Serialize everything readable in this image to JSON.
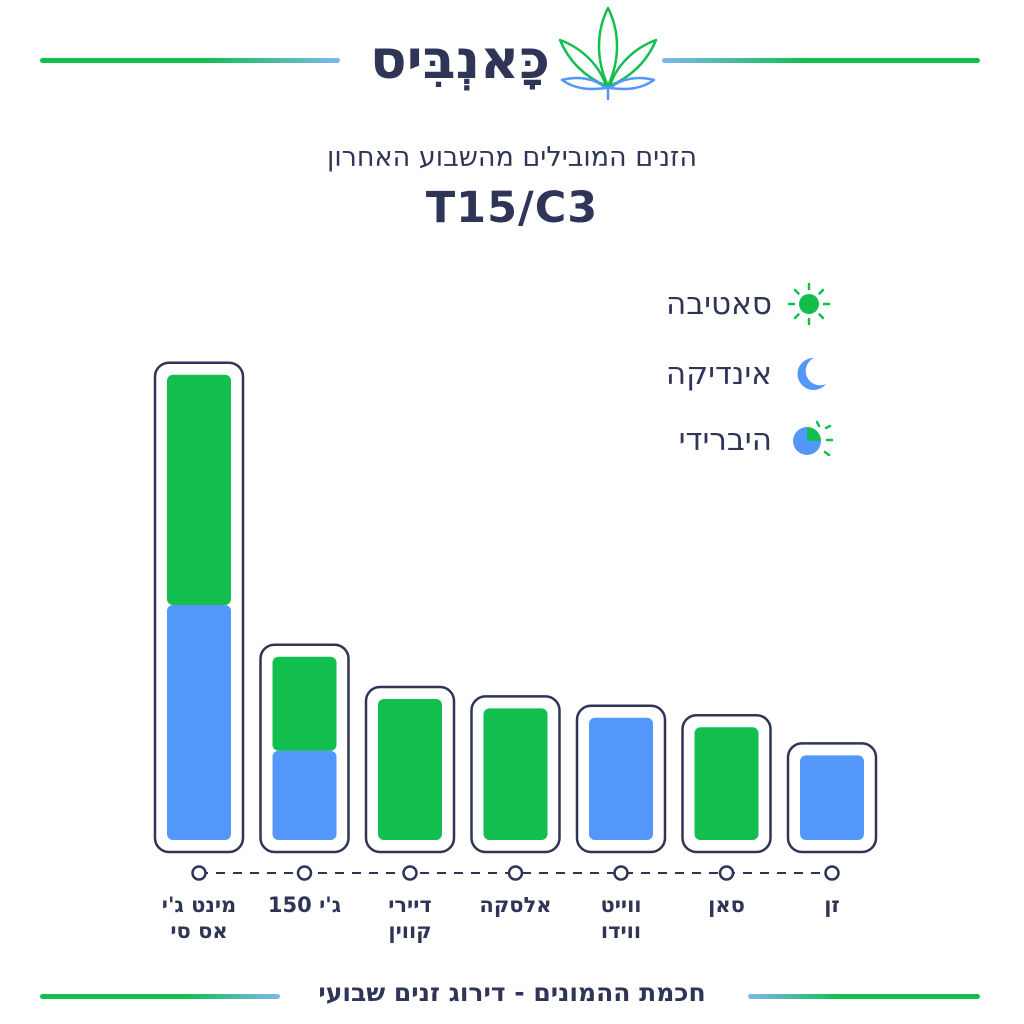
{
  "brand": {
    "name": "כָּאנְבִּיס",
    "logo_icon": "cannabis-leaf-icon"
  },
  "subtitle": "הזנים המובילים מהשבוע האחרון",
  "code": "T15/C3",
  "footer": "חכמת ההמונים - דירוג זנים שבועי",
  "colors": {
    "sativa": "#12bf4e",
    "indica": "#5497fb",
    "ink": "#2f3557"
  },
  "legend": [
    {
      "label": "סאטיבה",
      "icon": "sun-icon"
    },
    {
      "label": "אינדיקה",
      "icon": "moon-icon"
    },
    {
      "label": "היברידי",
      "icon": "hybrid-sun-moon-icon"
    }
  ],
  "chart_data": {
    "type": "bar",
    "stacked": true,
    "categories": [
      "מינט ג'י\nאס סי",
      "ג'י 150",
      "דיירי\nקווין",
      "אלסקה",
      "ווייט\nווידו",
      "סאן",
      "זן"
    ],
    "series": [
      {
        "name": "סאטיבה",
        "values": [
          49,
          20,
          30,
          28,
          0,
          24,
          0
        ]
      },
      {
        "name": "אינדיקה",
        "values": [
          50,
          19,
          0,
          0,
          26,
          0,
          18
        ]
      }
    ],
    "ylim": [
      0,
      100
    ],
    "grid": false,
    "legend_position": "top-right"
  }
}
